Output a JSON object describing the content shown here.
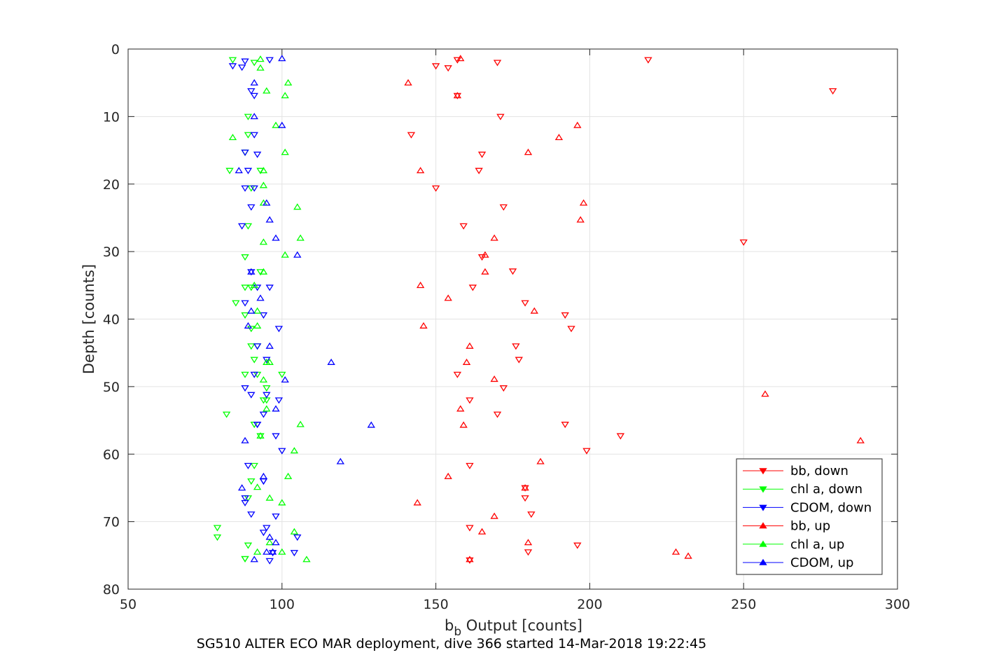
{
  "chart_data": {
    "type": "scatter",
    "title": "",
    "xlabel_main": "b",
    "xlabel_sub": "b",
    "xlabel_rest": " Output [counts]",
    "ylabel": "Depth [counts]",
    "caption": "SG510 ALTER ECO MAR deployment, dive 366 started 14-Mar-2018 19:22:45",
    "xlim": [
      50,
      300
    ],
    "ylim": [
      0,
      80
    ],
    "y_reversed": true,
    "xticks": [
      "50",
      "100",
      "150",
      "200",
      "250",
      "300"
    ],
    "yticks": [
      "0",
      "10",
      "20",
      "30",
      "40",
      "50",
      "60",
      "70",
      "80"
    ],
    "grid": true,
    "legend_position": "bottom-right",
    "series": [
      {
        "name": "bb, down",
        "color": "#ff0000",
        "marker": "triangle-down",
        "x": [
          219,
          157,
          170,
          150,
          154,
          279,
          157,
          171,
          142,
          165,
          164,
          150,
          172,
          159,
          250,
          165,
          175,
          162,
          179,
          192,
          194,
          176,
          177,
          157,
          172,
          161,
          170,
          192,
          210,
          199,
          161,
          179,
          179,
          181,
          161,
          196,
          180,
          161
        ],
        "y": [
          1.6,
          1.6,
          2.0,
          2.5,
          2.8,
          6.2,
          6.9,
          10.0,
          12.7,
          15.6,
          18.0,
          20.6,
          23.4,
          26.2,
          28.6,
          30.8,
          32.9,
          35.3,
          37.6,
          39.4,
          41.4,
          44.0,
          46.0,
          48.2,
          50.2,
          52.0,
          54.1,
          55.6,
          57.3,
          59.5,
          61.7,
          65.0,
          66.5,
          68.9,
          70.9,
          73.5,
          74.5,
          75.7
        ]
      },
      {
        "name": "chl a, down",
        "color": "#00ff00",
        "marker": "triangle-down",
        "x": [
          84,
          91,
          89,
          89,
          88,
          83,
          93,
          90,
          89,
          88,
          93,
          90,
          88,
          88,
          85,
          90,
          92,
          90,
          91,
          88,
          92,
          100,
          95,
          94,
          95,
          82,
          91,
          93,
          91,
          90,
          89,
          79,
          79,
          89,
          88,
          88
        ],
        "y": [
          1.6,
          2.0,
          10.0,
          12.7,
          15.3,
          18.0,
          18.0,
          20.6,
          26.2,
          30.8,
          33.0,
          35.3,
          35.3,
          39.4,
          37.6,
          41.4,
          44.0,
          44.0,
          46.0,
          48.2,
          48.2,
          48.2,
          50.2,
          52.0,
          52.0,
          54.1,
          55.6,
          57.3,
          61.7,
          64.0,
          66.5,
          70.9,
          72.3,
          73.5,
          75.5,
          75.5
        ]
      },
      {
        "name": "CDOM, down",
        "color": "#0000ff",
        "marker": "triangle-down",
        "x": [
          96,
          84,
          87,
          88,
          90,
          91,
          91,
          92,
          88,
          89,
          91,
          88,
          87,
          90,
          90,
          92,
          96,
          88,
          94,
          99,
          92,
          95,
          91,
          88,
          99,
          94,
          95,
          90,
          98,
          100,
          92,
          92,
          89,
          94,
          94,
          88,
          88,
          90,
          98,
          95,
          94,
          105,
          104,
          97,
          96
        ],
        "y": [
          1.6,
          2.5,
          2.7,
          1.8,
          6.2,
          6.9,
          12.7,
          15.6,
          15.3,
          18.0,
          20.6,
          20.6,
          26.2,
          23.4,
          33.0,
          35.3,
          35.3,
          37.6,
          39.4,
          41.4,
          44.0,
          46.0,
          48.2,
          50.2,
          52.0,
          54.1,
          51.2,
          51.2,
          57.3,
          59.5,
          55.6,
          55.6,
          61.7,
          64.0,
          64.0,
          66.5,
          67.2,
          68.9,
          69.2,
          70.9,
          71.6,
          72.3,
          74.6,
          74.6,
          75.8
        ]
      },
      {
        "name": "bb, up",
        "color": "#ff0000",
        "marker": "triangle-up",
        "x": [
          158,
          141,
          157,
          196,
          190,
          180,
          145,
          198,
          197,
          169,
          166,
          166,
          145,
          154,
          182,
          146,
          161,
          160,
          169,
          257,
          158,
          159,
          288,
          184,
          154,
          179,
          144,
          169,
          165,
          180,
          228,
          232,
          161
        ],
        "y": [
          1.4,
          5.0,
          6.9,
          11.3,
          13.1,
          15.3,
          18.0,
          22.8,
          25.3,
          28.0,
          30.5,
          33.0,
          35.0,
          36.9,
          38.8,
          41.0,
          44.0,
          46.4,
          48.9,
          51.1,
          53.3,
          55.7,
          58.0,
          61.1,
          63.3,
          65.0,
          67.2,
          69.2,
          71.5,
          73.1,
          74.5,
          75.1,
          75.6
        ]
      },
      {
        "name": "chl a, up",
        "color": "#00ff00",
        "marker": "triangle-up",
        "x": [
          93,
          93,
          102,
          95,
          101,
          98,
          84,
          101,
          94,
          94,
          94,
          105,
          94,
          106,
          101,
          94,
          91,
          92,
          92,
          95,
          96,
          94,
          95,
          106,
          93,
          104,
          102,
          92,
          100,
          96,
          104,
          100,
          108,
          96,
          92
        ],
        "y": [
          1.5,
          2.8,
          5.0,
          6.2,
          6.9,
          11.3,
          13.1,
          15.3,
          18.0,
          20.2,
          22.8,
          23.4,
          28.6,
          28.0,
          30.5,
          33.0,
          35.0,
          38.8,
          41.0,
          46.4,
          46.4,
          49.0,
          53.3,
          55.6,
          57.3,
          59.5,
          63.3,
          64.9,
          67.2,
          66.5,
          71.5,
          74.5,
          75.6,
          73.1,
          74.5
        ]
      },
      {
        "name": "CDOM, up",
        "color": "#0000ff",
        "marker": "triangle-up",
        "x": [
          100,
          91,
          91,
          100,
          95,
          86,
          96,
          98,
          105,
          90,
          93,
          90,
          89,
          96,
          116,
          101,
          98,
          129,
          88,
          119,
          94,
          87,
          96,
          98,
          97,
          95,
          91
        ],
        "y": [
          1.4,
          5.0,
          10.0,
          11.3,
          22.8,
          18.0,
          25.3,
          28.0,
          30.5,
          33.0,
          36.9,
          38.8,
          41.0,
          44.0,
          46.4,
          49.0,
          53.3,
          55.7,
          58.0,
          61.1,
          63.3,
          65.0,
          72.3,
          73.1,
          74.5,
          74.5,
          75.6
        ]
      }
    ]
  }
}
